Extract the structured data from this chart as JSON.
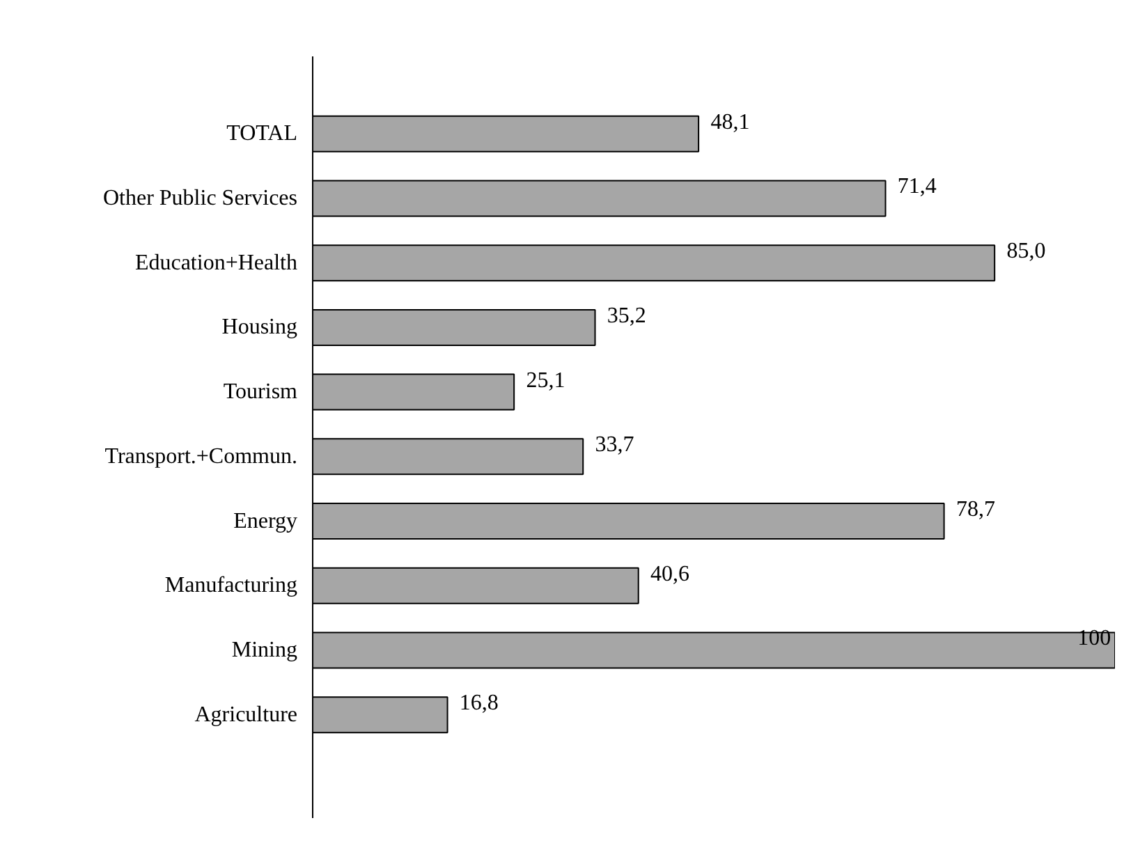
{
  "chart_data": {
    "type": "bar",
    "orientation": "horizontal",
    "categories": [
      "TOTAL",
      "Other Public Services",
      "Education+Health",
      "Housing",
      "Tourism",
      "Transport.+Commun.",
      "Energy",
      "Manufacturing",
      "Mining",
      "Agriculture"
    ],
    "values": [
      48.1,
      71.4,
      85.0,
      35.2,
      25.1,
      33.7,
      78.7,
      40.6,
      100,
      16.8
    ],
    "value_labels": [
      "48,1",
      "71,4",
      "85,0",
      "35,2",
      "25,1",
      "33,7",
      "78,7",
      "40,6",
      "100",
      "16,8"
    ],
    "color": "#a6a6a6",
    "xlim": [
      0,
      100
    ],
    "tick_labels": "y",
    "grid": false
  }
}
